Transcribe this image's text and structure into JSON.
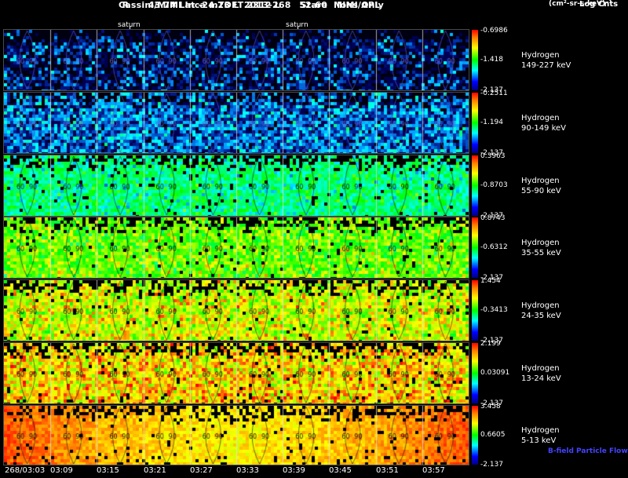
{
  "header": {
    "title_line1": "Cassini/MIMI Inca mTOF  2013-268   Stare   Ions Only",
    "title_line2": "R      43.74 Lat -24.23 LT 2312 L      52.60  MIMI/APL",
    "log_label": "Log Cnts",
    "units_label": "(cm²-sr-s-keV)⁻¹",
    "saturn_labels": [
      "saturn",
      "saturn"
    ]
  },
  "footer": {
    "bfield_label": "B-field Particle Flow",
    "bfield_color": "#4444ff"
  },
  "chart_data": {
    "type": "heatmap",
    "title": "Cassini/MIMI Inca mTOF 2013-268 Stare Ions Only",
    "colorbar_title": "Log Cnts (cm²-sr-s-keV)⁻¹",
    "colorbar_gradient": [
      "#ff0000",
      "#ff8000",
      "#ffff00",
      "#00ff00",
      "#00ffff",
      "#0000ff",
      "#000080"
    ],
    "x_tick_labels": [
      "268/03:03",
      "03:09",
      "03:15",
      "03:21",
      "03:27",
      "03:33",
      "03:39",
      "03:45",
      "03:51",
      "03:57"
    ],
    "columns_per_row": 10,
    "contour_labels": [
      "60",
      "90"
    ],
    "rows": [
      {
        "species": "Hydrogen",
        "band": "149-227 keV",
        "scale_max": "-0.6986",
        "scale_mid": "-1.418",
        "scale_min": "-2.137",
        "approx_level": 0.05
      },
      {
        "species": "Hydrogen",
        "band": "90-149 keV",
        "scale_max": "-0.2511",
        "scale_mid": "-1.194",
        "scale_min": "-2.137",
        "approx_level": 0.12
      },
      {
        "species": "Hydrogen",
        "band": "55-90 keV",
        "scale_max": "0.3963",
        "scale_mid": "-0.8703",
        "scale_min": "-2.137",
        "approx_level": 0.38
      },
      {
        "species": "Hydrogen",
        "band": "35-55 keV",
        "scale_max": "0.8743",
        "scale_mid": "-0.6312",
        "scale_min": "-2.137",
        "approx_level": 0.6
      },
      {
        "species": "Hydrogen",
        "band": "24-35 keV",
        "scale_max": "1.454",
        "scale_mid": "-0.3413",
        "scale_min": "-2.137",
        "approx_level": 0.7
      },
      {
        "species": "Hydrogen",
        "band": "13-24 keV",
        "scale_max": "2.199",
        "scale_mid": "0.03091",
        "scale_min": "-2.137",
        "approx_level": 0.78
      },
      {
        "species": "Hydrogen",
        "band": "5-13 keV",
        "scale_max": "3.458",
        "scale_mid": "0.6605",
        "scale_min": "-2.137",
        "approx_level": 0.84
      }
    ]
  }
}
